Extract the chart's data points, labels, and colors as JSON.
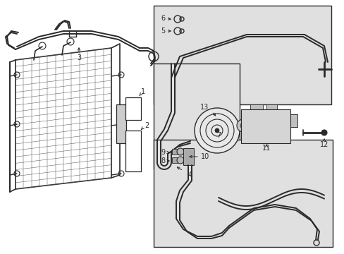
{
  "bg_color": "#ffffff",
  "line_color": "#2a2a2a",
  "box_bg": "#e0e0e0",
  "figsize": [
    4.89,
    3.6
  ],
  "dpi": 100,
  "xlim": [
    0,
    489
  ],
  "ylim": [
    0,
    360
  ]
}
